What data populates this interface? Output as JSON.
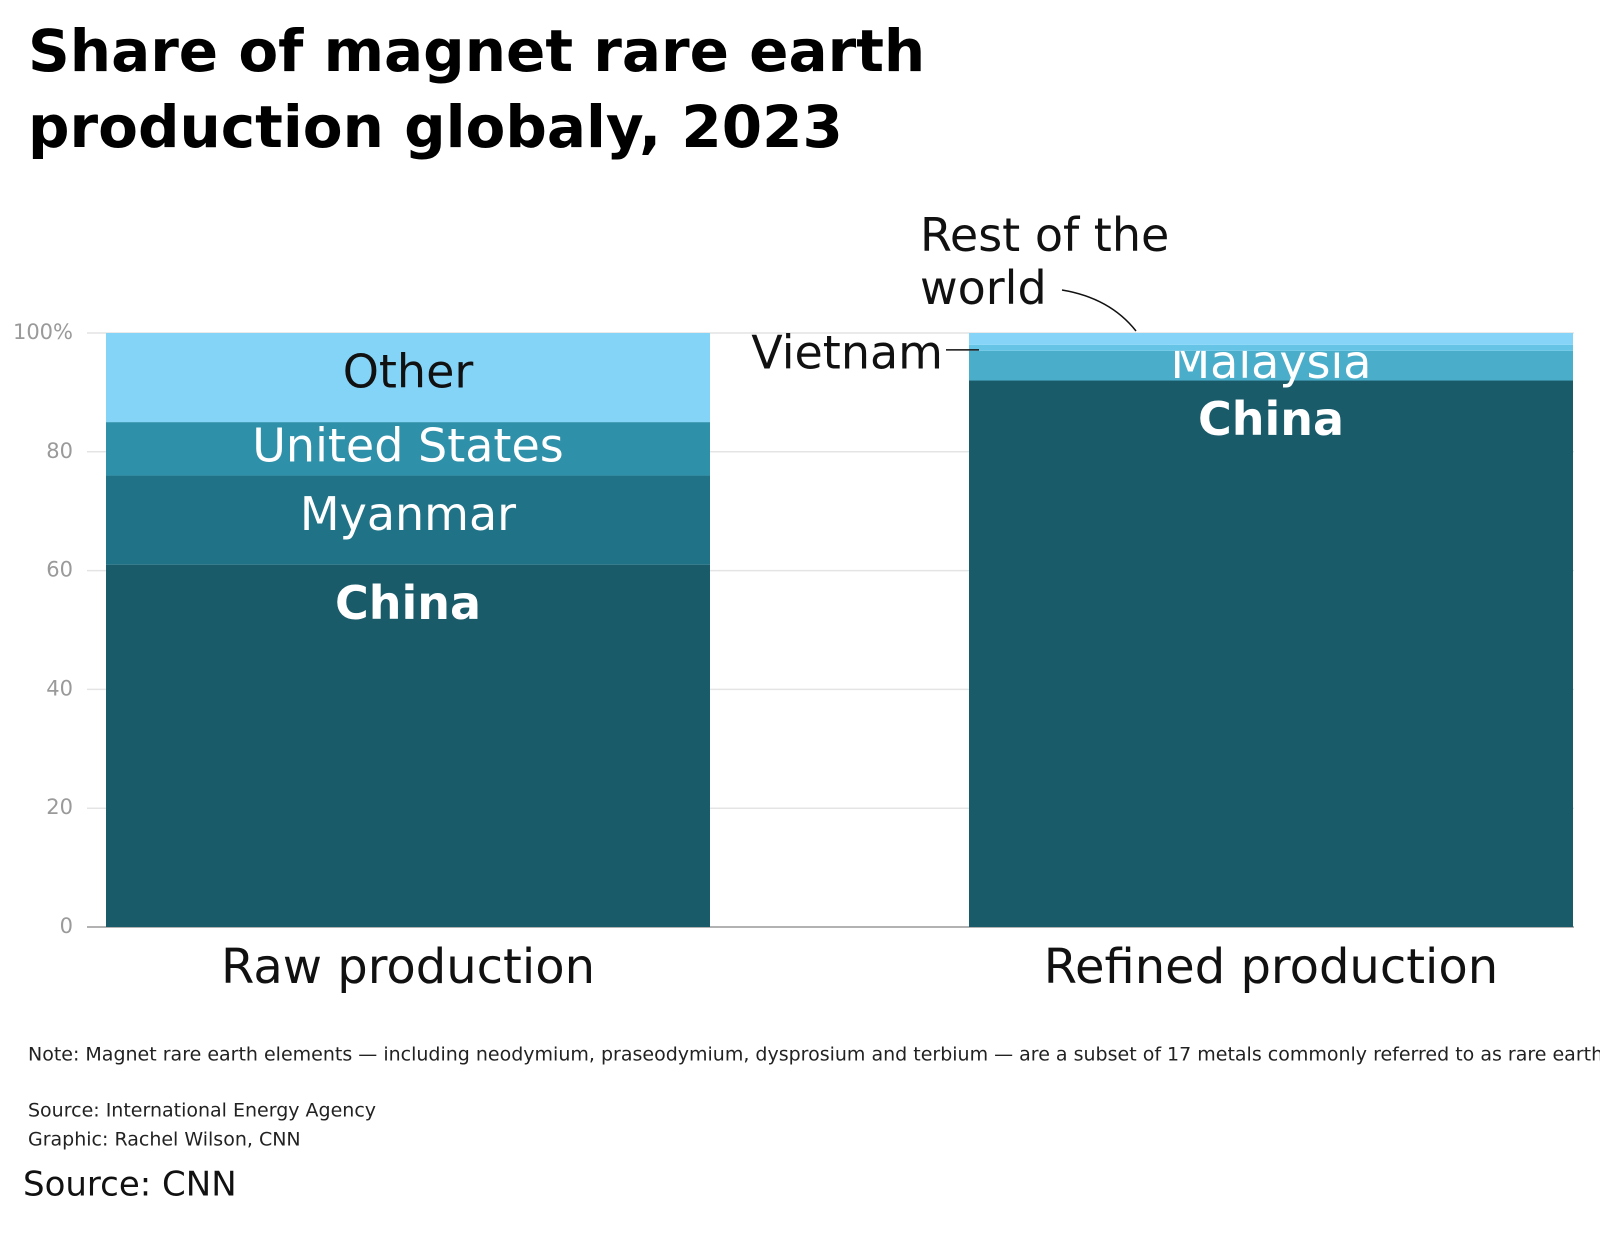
{
  "chart_data": {
    "type": "stacked_bar",
    "title": "Share of magnet rare earth production globaly, 2023",
    "categories": [
      "Raw production",
      "Refined production"
    ],
    "series": [
      {
        "name": "China",
        "color": "#1a5b6a",
        "values": [
          61,
          92
        ]
      },
      {
        "name": "Myanmar",
        "color": "#207286",
        "values": [
          15,
          null
        ]
      },
      {
        "name": "United States",
        "color": "#2e90a9",
        "values": [
          9,
          null
        ]
      },
      {
        "name": "Other",
        "color": "#84d4f8",
        "values": [
          15,
          null
        ]
      },
      {
        "name": "Malaysia",
        "color": "#4aaecb",
        "values": [
          null,
          5
        ]
      },
      {
        "name": "Vietnam",
        "color": "#66c4e6",
        "values": [
          null,
          1
        ]
      },
      {
        "name": "Rest of the world",
        "color": "#86d5f8",
        "values": [
          null,
          2
        ]
      }
    ],
    "ylim": [
      0,
      100
    ],
    "yticks": [
      0,
      20,
      40,
      60,
      80,
      {
        "value": 100,
        "label": "100%"
      }
    ],
    "grid": true,
    "note": "Note: Magnet rare earth elements — including neodymium, praseodymium, dysprosium and terbium — are a subset of 17 metals commonly referred to as rare earths.",
    "source": "Source: International Energy Agency",
    "credit": "Graphic: Rachel Wilson, CNN",
    "footer": "Source: CNN"
  }
}
